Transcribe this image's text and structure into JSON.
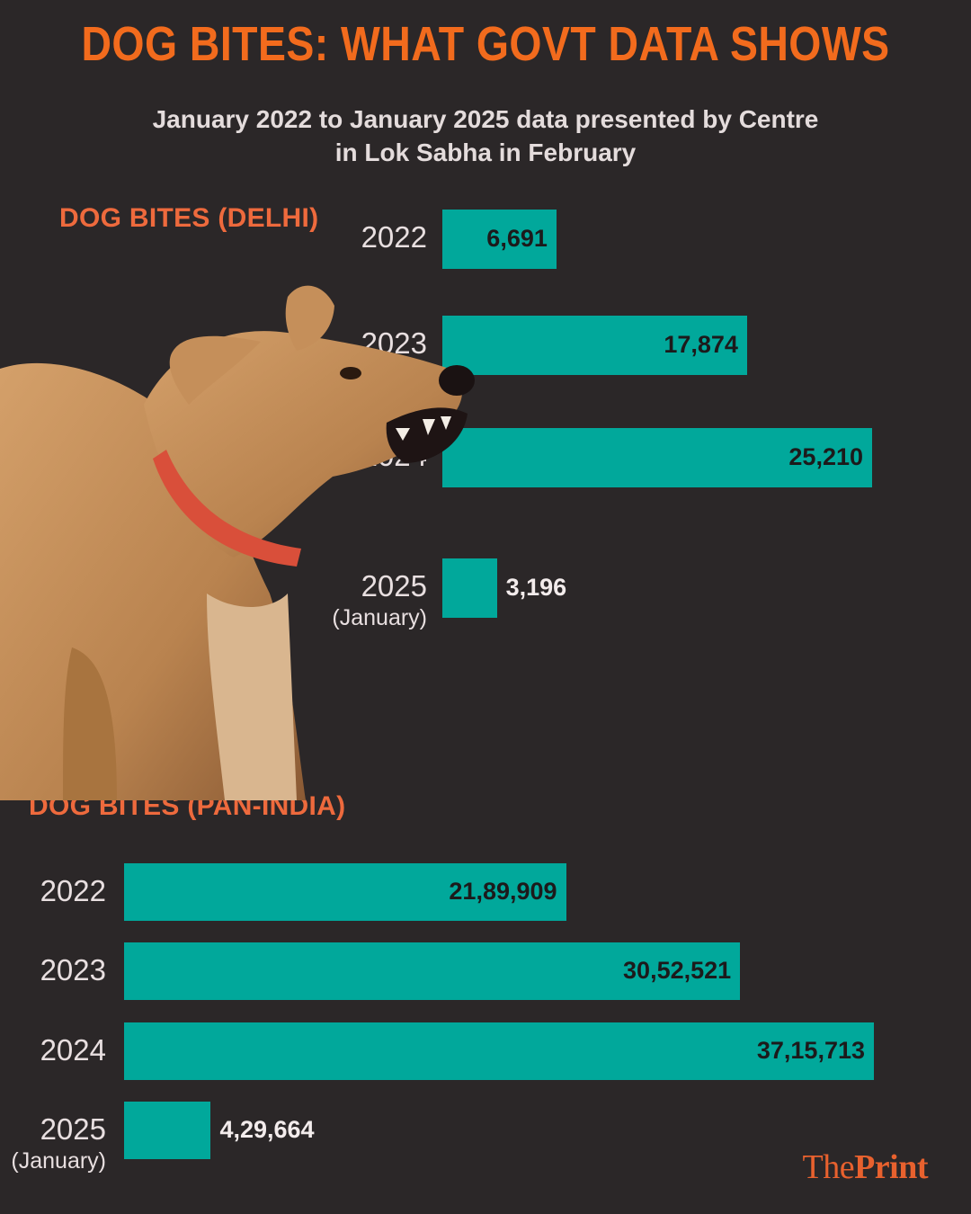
{
  "title": "DOG BITES: WHAT GOVT DATA SHOWS",
  "subtitle": [
    "January 2022 to January 2025 data presented by Centre",
    "in Lok Sabha in February"
  ],
  "colors": {
    "title": "#f26b1d",
    "section": "#ee6a3d",
    "bar": "#01a89b",
    "background": "#2b2728"
  },
  "chart_data": [
    {
      "type": "bar",
      "orientation": "horizontal",
      "title": "DOG BITES (DELHI)",
      "categories": [
        {
          "year": "2022",
          "note": ""
        },
        {
          "year": "2023",
          "note": ""
        },
        {
          "year": "2024",
          "note": ""
        },
        {
          "year": "2025",
          "note": "(January)"
        }
      ],
      "values": [
        6691,
        17874,
        25210,
        3196
      ],
      "value_labels": [
        "6,691",
        "17,874",
        "25,210",
        "3,196"
      ]
    },
    {
      "type": "bar",
      "orientation": "horizontal",
      "title": "DOG BITES (PAN-INDIA)",
      "categories": [
        {
          "year": "2022",
          "note": ""
        },
        {
          "year": "2023",
          "note": ""
        },
        {
          "year": "2024",
          "note": ""
        },
        {
          "year": "2025",
          "note": "(January)"
        }
      ],
      "values": [
        2189909,
        3052521,
        3715713,
        429664
      ],
      "value_labels": [
        "21,89,909",
        "30,52,521",
        "37,15,713",
        "4,29,664"
      ]
    }
  ],
  "illustration": "angry-dog-photo",
  "logo": {
    "part1": "The",
    "part2": "Print"
  }
}
